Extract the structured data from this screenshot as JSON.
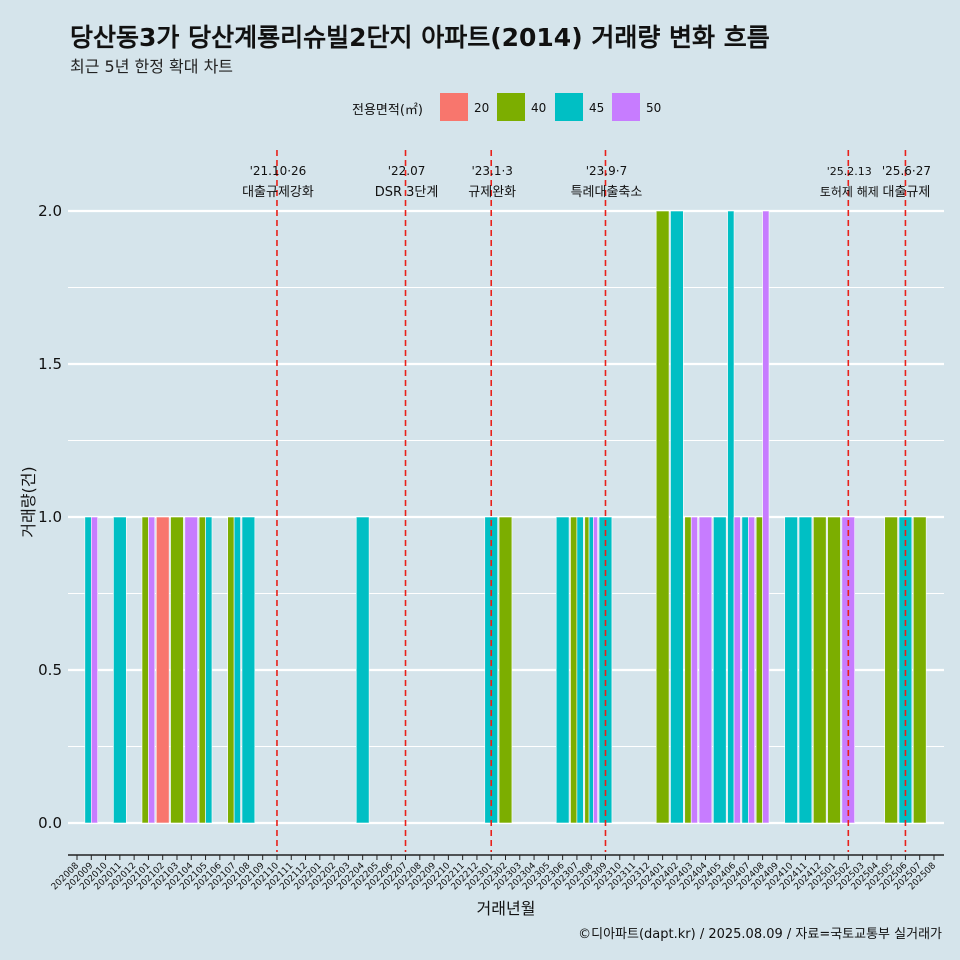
{
  "title": "당산동3가 당산계룡리슈빌2단지 아파트(2014) 거래량 변화 흐름",
  "subtitle": "최근 5년 한정 확대 차트",
  "caption": "©디아파트(dapt.kr) / 2025.08.09 / 자료=국토교통부 실거래가",
  "legend": {
    "title": "전용면적(㎡)",
    "items": [
      {
        "label": "20",
        "color": "#f8766d"
      },
      {
        "label": "40",
        "color": "#7cae00"
      },
      {
        "label": "45",
        "color": "#00bfc4"
      },
      {
        "label": "50",
        "color": "#c77cff"
      }
    ]
  },
  "chart_data": {
    "type": "bar",
    "stacking": "dodge",
    "xlabel": "거래년월",
    "ylabel": "거래량(건)",
    "ylim": [
      0,
      2
    ],
    "yticks": [
      "0.0",
      "0.5",
      "1.0",
      "1.5",
      "2.0"
    ],
    "grid": true,
    "categories": [
      "202008",
      "202009",
      "202010",
      "202011",
      "202012",
      "202101",
      "202102",
      "202103",
      "202104",
      "202105",
      "202106",
      "202107",
      "202108",
      "202109",
      "202110",
      "202111",
      "202112",
      "202201",
      "202202",
      "202203",
      "202204",
      "202205",
      "202206",
      "202207",
      "202208",
      "202209",
      "202210",
      "202211",
      "202212",
      "202301",
      "202302",
      "202303",
      "202304",
      "202305",
      "202306",
      "202307",
      "202308",
      "202309",
      "202310",
      "202311",
      "202312",
      "202401",
      "202402",
      "202403",
      "202404",
      "202405",
      "202406",
      "202407",
      "202408",
      "202409",
      "202410",
      "202411",
      "202412",
      "202501",
      "202502",
      "202503",
      "202504",
      "202505",
      "202506",
      "202507",
      "202508"
    ],
    "bars": [
      {
        "month": "202009",
        "groups": [
          {
            "area": "45",
            "value": 1
          },
          {
            "area": "50",
            "value": 1
          }
        ]
      },
      {
        "month": "202011",
        "groups": [
          {
            "area": "45",
            "value": 1
          }
        ]
      },
      {
        "month": "202101",
        "groups": [
          {
            "area": "40",
            "value": 1
          },
          {
            "area": "50",
            "value": 1
          }
        ]
      },
      {
        "month": "202102",
        "groups": [
          {
            "area": "20",
            "value": 1
          }
        ]
      },
      {
        "month": "202103",
        "groups": [
          {
            "area": "40",
            "value": 1
          }
        ]
      },
      {
        "month": "202104",
        "groups": [
          {
            "area": "50",
            "value": 1
          }
        ]
      },
      {
        "month": "202105",
        "groups": [
          {
            "area": "40",
            "value": 1
          },
          {
            "area": "45",
            "value": 1
          }
        ]
      },
      {
        "month": "202107",
        "groups": [
          {
            "area": "40",
            "value": 1
          },
          {
            "area": "45",
            "value": 1
          }
        ]
      },
      {
        "month": "202108",
        "groups": [
          {
            "area": "45",
            "value": 1
          }
        ]
      },
      {
        "month": "202204",
        "groups": [
          {
            "area": "45",
            "value": 1
          }
        ]
      },
      {
        "month": "202301",
        "groups": [
          {
            "area": "45",
            "value": 1
          }
        ]
      },
      {
        "month": "202302",
        "groups": [
          {
            "area": "40",
            "value": 1
          }
        ]
      },
      {
        "month": "202306",
        "groups": [
          {
            "area": "45",
            "value": 1
          }
        ]
      },
      {
        "month": "202307",
        "groups": [
          {
            "area": "40",
            "value": 1
          },
          {
            "area": "45",
            "value": 1
          }
        ]
      },
      {
        "month": "202308",
        "groups": [
          {
            "area": "40",
            "value": 1
          },
          {
            "area": "45",
            "value": 1
          },
          {
            "area": "50",
            "value": 1
          }
        ]
      },
      {
        "month": "202309",
        "groups": [
          {
            "area": "45",
            "value": 1
          }
        ]
      },
      {
        "month": "202401",
        "groups": [
          {
            "area": "40",
            "value": 2
          }
        ]
      },
      {
        "month": "202402",
        "groups": [
          {
            "area": "45",
            "value": 2
          }
        ]
      },
      {
        "month": "202403",
        "groups": [
          {
            "area": "40",
            "value": 1
          },
          {
            "area": "50",
            "value": 1
          }
        ]
      },
      {
        "month": "202404",
        "groups": [
          {
            "area": "50",
            "value": 1
          }
        ]
      },
      {
        "month": "202405",
        "groups": [
          {
            "area": "45",
            "value": 1
          }
        ]
      },
      {
        "month": "202406",
        "groups": [
          {
            "area": "45",
            "value": 2
          },
          {
            "area": "50",
            "value": 1
          }
        ]
      },
      {
        "month": "202407",
        "groups": [
          {
            "area": "45",
            "value": 1
          },
          {
            "area": "50",
            "value": 1
          }
        ]
      },
      {
        "month": "202408",
        "groups": [
          {
            "area": "40",
            "value": 1
          },
          {
            "area": "50",
            "value": 2
          }
        ]
      },
      {
        "month": "202410",
        "groups": [
          {
            "area": "45",
            "value": 1
          }
        ]
      },
      {
        "month": "202411",
        "groups": [
          {
            "area": "45",
            "value": 1
          }
        ]
      },
      {
        "month": "202412",
        "groups": [
          {
            "area": "40",
            "value": 1
          }
        ]
      },
      {
        "month": "202501",
        "groups": [
          {
            "area": "40",
            "value": 1
          }
        ]
      },
      {
        "month": "202502",
        "groups": [
          {
            "area": "50",
            "value": 1
          }
        ]
      },
      {
        "month": "202505",
        "groups": [
          {
            "area": "40",
            "value": 1
          }
        ]
      },
      {
        "month": "202506",
        "groups": [
          {
            "area": "45",
            "value": 1
          }
        ]
      },
      {
        "month": "202507",
        "groups": [
          {
            "area": "40",
            "value": 1
          }
        ]
      }
    ],
    "events": [
      {
        "month": "202110",
        "date": "'21.10·26",
        "label": "대출규제강화"
      },
      {
        "month": "202207",
        "date": "'22.07",
        "label": "DSR 3단계"
      },
      {
        "month": "202301",
        "date": "'23.1·3",
        "label": "규제완화"
      },
      {
        "month": "202309",
        "date": "'23.9·7",
        "label": "특례대출축소"
      },
      {
        "month": "202502",
        "date": "'25.2.13",
        "label": "토허제 해제"
      },
      {
        "month": "202506",
        "date": "'25.6·27",
        "label": "대출규제"
      }
    ]
  }
}
